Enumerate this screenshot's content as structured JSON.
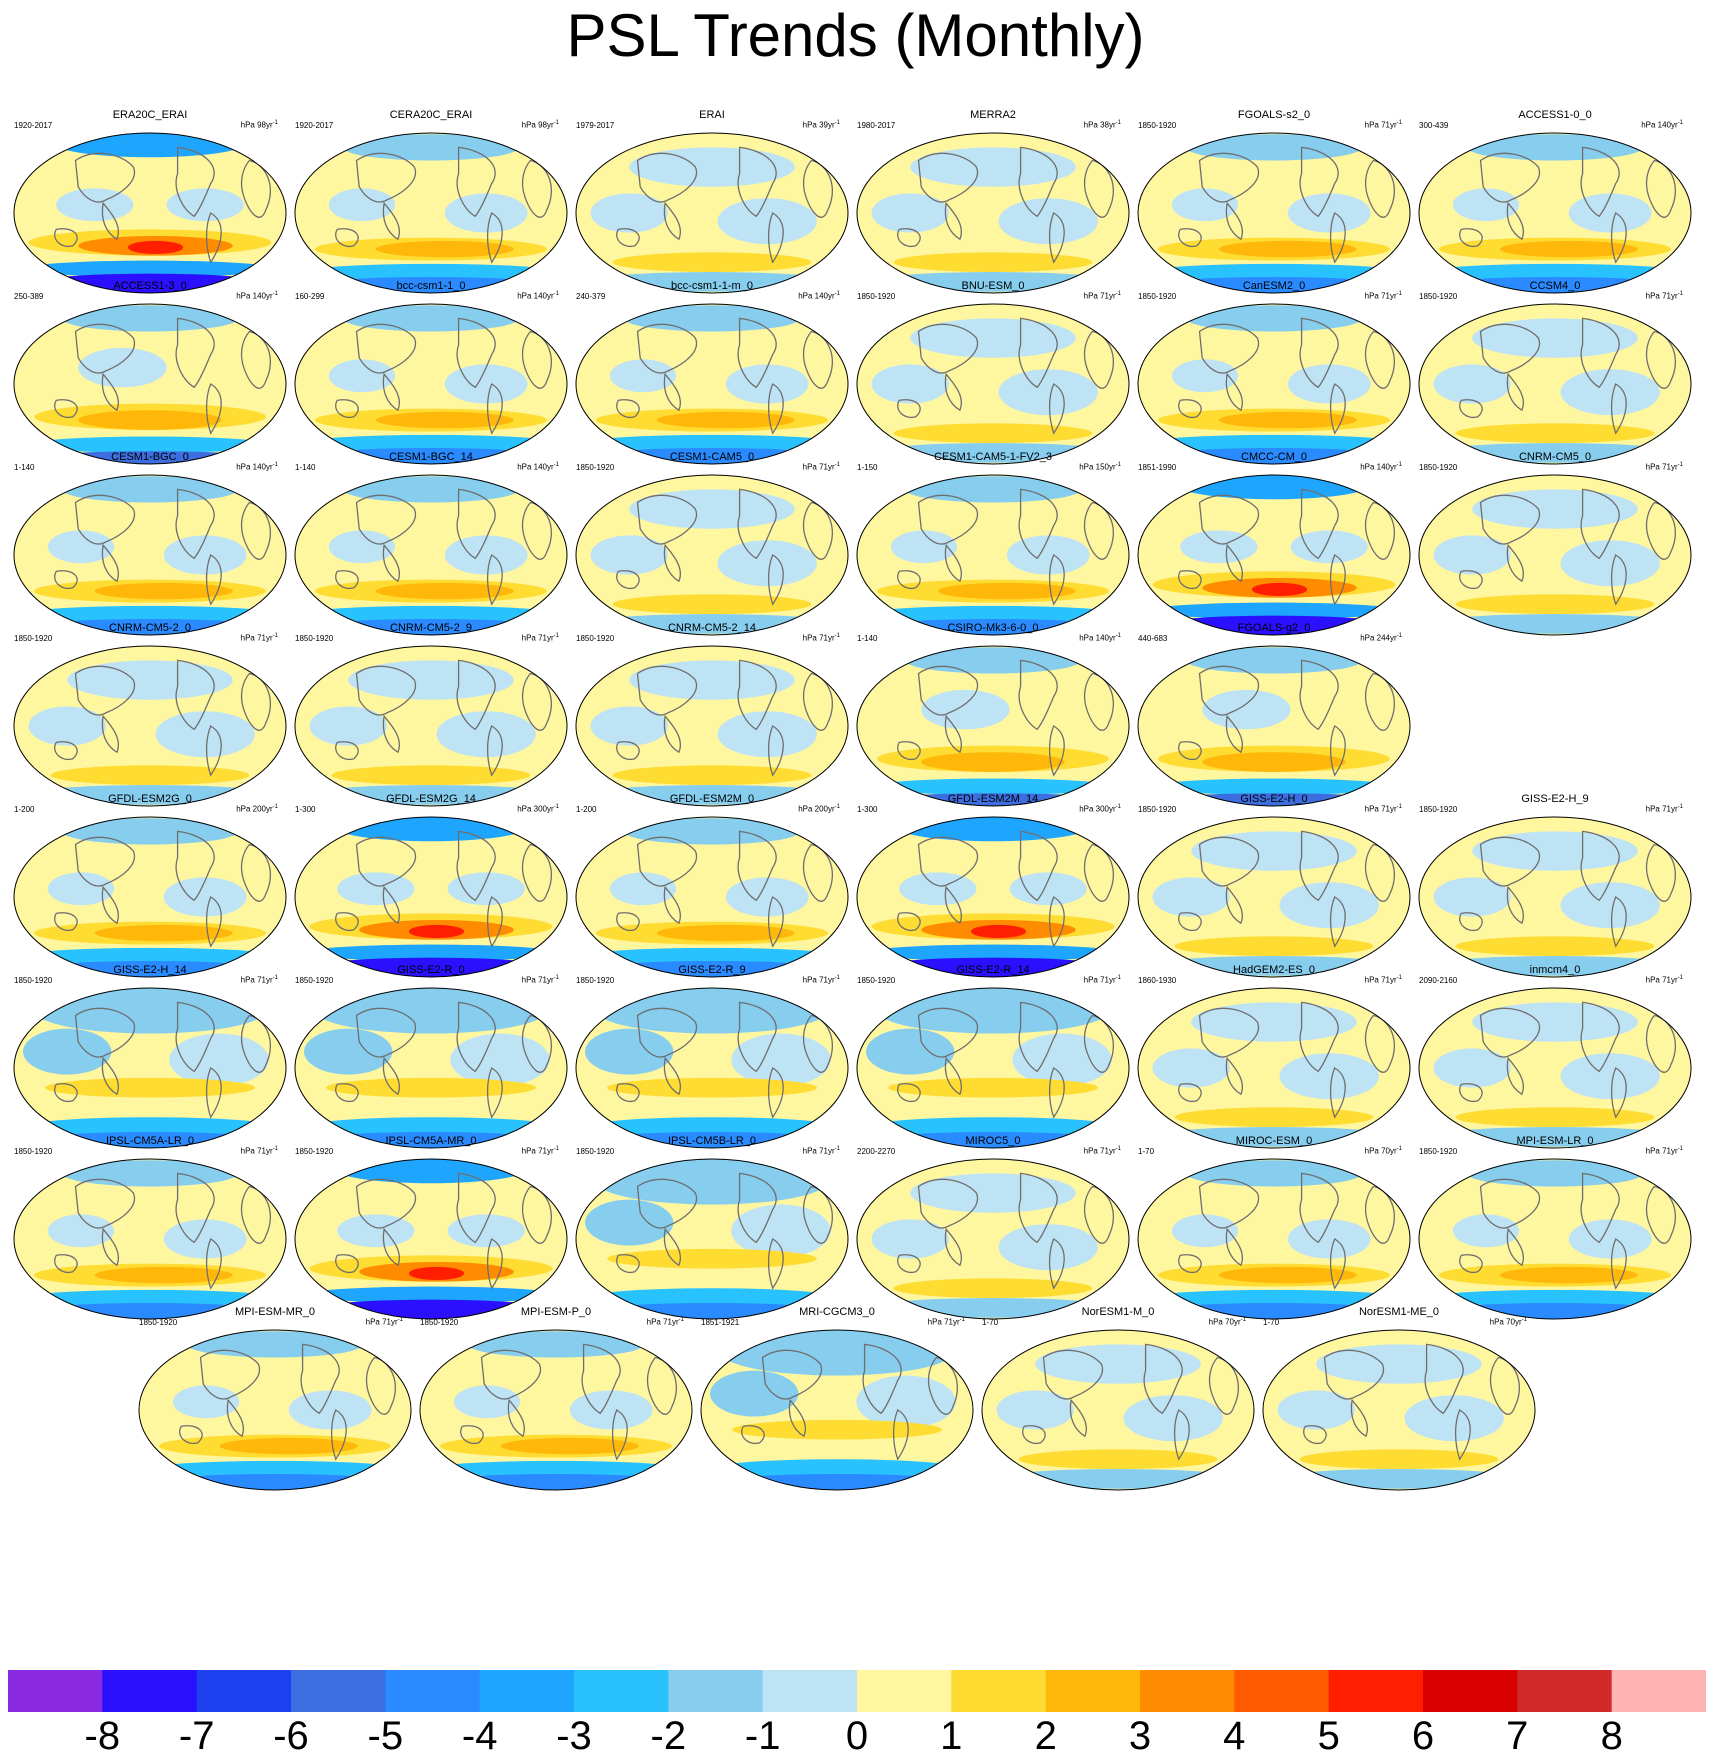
{
  "title": "PSL Trends (Monthly)",
  "panels": [
    {
      "name": "ERA20C_ERAI",
      "period": "1920-2017",
      "units": "hPa 98yr",
      "style": "strong-south-neg"
    },
    {
      "name": "CERA20C_ERAI",
      "period": "1920-2017",
      "units": "hPa 98yr",
      "style": "mid-south-neg"
    },
    {
      "name": "ERAI",
      "period": "1979-2017",
      "units": "hPa 39yr",
      "style": "light"
    },
    {
      "name": "MERRA2",
      "period": "1980-2017",
      "units": "hPa 38yr",
      "style": "light"
    },
    {
      "name": "FGOALS-s2_0",
      "period": "1850-1920",
      "units": "hPa 71yr",
      "style": "mid-south-neg"
    },
    {
      "name": "ACCESS1-0_0",
      "period": "300-439",
      "units": "hPa 140yr",
      "style": "mid-south-neg"
    },
    {
      "name": "ACCESS1-3_0",
      "period": "250-389",
      "units": "hPa 140yr",
      "style": "pos-band"
    },
    {
      "name": "bcc-csm1-1_0",
      "period": "160-299",
      "units": "hPa 140yr",
      "style": "mid-south-neg"
    },
    {
      "name": "bcc-csm1-1-m_0",
      "period": "240-379",
      "units": "hPa 140yr",
      "style": "mid-south-neg"
    },
    {
      "name": "BNU-ESM_0",
      "period": "1850-1920",
      "units": "hPa 71yr",
      "style": "light"
    },
    {
      "name": "CanESM2_0",
      "period": "1850-1920",
      "units": "hPa 71yr",
      "style": "mid-south-neg"
    },
    {
      "name": "CCSM4_0",
      "period": "1850-1920",
      "units": "hPa 71yr",
      "style": "light"
    },
    {
      "name": "CESM1-BGC_0",
      "period": "1-140",
      "units": "hPa 140yr",
      "style": "mid-south-neg"
    },
    {
      "name": "CESM1-BGC_14",
      "period": "1-140",
      "units": "hPa 140yr",
      "style": "mid-south-neg"
    },
    {
      "name": "CESM1-CAM5_0",
      "period": "1850-1920",
      "units": "hPa 71yr",
      "style": "light"
    },
    {
      "name": "CESM1-CAM5-1-FV2_3",
      "period": "1-150",
      "units": "hPa 150yr",
      "style": "mid-south-neg"
    },
    {
      "name": "CMCC-CM_0",
      "period": "1851-1990",
      "units": "hPa 140yr",
      "style": "strong-south-neg"
    },
    {
      "name": "CNRM-CM5_0",
      "period": "1850-1920",
      "units": "hPa 71yr",
      "style": "light"
    },
    {
      "name": "CNRM-CM5-2_0",
      "period": "1850-1920",
      "units": "hPa 71yr",
      "style": "light"
    },
    {
      "name": "CNRM-CM5-2_9",
      "period": "1850-1920",
      "units": "hPa 71yr",
      "style": "light"
    },
    {
      "name": "CNRM-CM5-2_14",
      "period": "1850-1920",
      "units": "hPa 71yr",
      "style": "light"
    },
    {
      "name": "CSIRO-Mk3-6-0_0",
      "period": "1-140",
      "units": "hPa 140yr",
      "style": "pos-band"
    },
    {
      "name": "FGOALS-g2_0",
      "period": "440-683",
      "units": "hPa 244yr",
      "style": "pos-band"
    },
    {
      "name": "GFDL-ESM2G_0",
      "period": "1-200",
      "units": "hPa 200yr",
      "style": "mid-south-neg"
    },
    {
      "name": "GFDL-ESM2G_14",
      "period": "1-300",
      "units": "hPa 300yr",
      "style": "strong-south-neg"
    },
    {
      "name": "GFDL-ESM2M_0",
      "period": "1-200",
      "units": "hPa 200yr",
      "style": "mid-south-neg"
    },
    {
      "name": "GFDL-ESM2M_14",
      "period": "1-300",
      "units": "hPa 300yr",
      "style": "strong-south-neg"
    },
    {
      "name": "GISS-E2-H_0",
      "period": "1850-1920",
      "units": "hPa 71yr",
      "style": "light"
    },
    {
      "name": "GISS-E2-H_9",
      "period": "1850-1920",
      "units": "hPa 71yr",
      "style": "light"
    },
    {
      "name": "GISS-E2-H_14",
      "period": "1850-1920",
      "units": "hPa 71yr",
      "style": "blueish"
    },
    {
      "name": "GISS-E2-R_0",
      "period": "1850-1920",
      "units": "hPa 71yr",
      "style": "blueish"
    },
    {
      "name": "GISS-E2-R_9",
      "period": "1850-1920",
      "units": "hPa 71yr",
      "style": "blueish"
    },
    {
      "name": "GISS-E2-R_14",
      "period": "1850-1920",
      "units": "hPa 71yr",
      "style": "blueish"
    },
    {
      "name": "HadGEM2-ES_0",
      "period": "1860-1930",
      "units": "hPa 71yr",
      "style": "light"
    },
    {
      "name": "inmcm4_0",
      "period": "2090-2160",
      "units": "hPa 71yr",
      "style": "light"
    },
    {
      "name": "IPSL-CM5A-LR_0",
      "period": "1850-1920",
      "units": "hPa 71yr",
      "style": "mid-south-neg"
    },
    {
      "name": "IPSL-CM5A-MR_0",
      "period": "1850-1920",
      "units": "hPa 71yr",
      "style": "strong-south-neg"
    },
    {
      "name": "IPSL-CM5B-LR_0",
      "period": "1850-1920",
      "units": "hPa 71yr",
      "style": "blueish"
    },
    {
      "name": "MIROC5_0",
      "period": "2200-2270",
      "units": "hPa 71yr",
      "style": "light"
    },
    {
      "name": "MIROC-ESM_0",
      "period": "1-70",
      "units": "hPa 70yr",
      "style": "mid-south-neg"
    },
    {
      "name": "MPI-ESM-LR_0",
      "period": "1850-1920",
      "units": "hPa 71yr",
      "style": "mid-south-neg"
    },
    {
      "name": "MPI-ESM-MR_0",
      "period": "1850-1920",
      "units": "hPa 71yr",
      "style": "mid-south-neg"
    },
    {
      "name": "MPI-ESM-P_0",
      "period": "1850-1920",
      "units": "hPa 71yr",
      "style": "mid-south-neg"
    },
    {
      "name": "MRI-CGCM3_0",
      "period": "1851-1921",
      "units": "hPa 71yr",
      "style": "blueish"
    },
    {
      "name": "NorESM1-M_0",
      "period": "1-70",
      "units": "hPa 70yr",
      "style": "light"
    },
    {
      "name": "NorESM1-ME_0",
      "period": "1-70",
      "units": "hPa 70yr",
      "style": "light"
    }
  ],
  "units_superscript": "-1",
  "colorbar": {
    "colors": [
      "#8a2be2",
      "#2a10ff",
      "#1e3ff0",
      "#3c6ee0",
      "#2a8aff",
      "#1ea6ff",
      "#28c2ff",
      "#86cdee",
      "#bee3f5",
      "#fff6a0",
      "#ffdc32",
      "#ffb80a",
      "#ff8c00",
      "#ff5a00",
      "#ff1e00",
      "#d80000",
      "#d22a2a",
      "#ffb4b4"
    ],
    "labels": [
      "-8",
      "-7",
      "-6",
      "-5",
      "-4",
      "-3",
      "-2",
      "-1",
      "0",
      "1",
      "2",
      "3",
      "4",
      "5",
      "6",
      "7",
      "8"
    ]
  }
}
